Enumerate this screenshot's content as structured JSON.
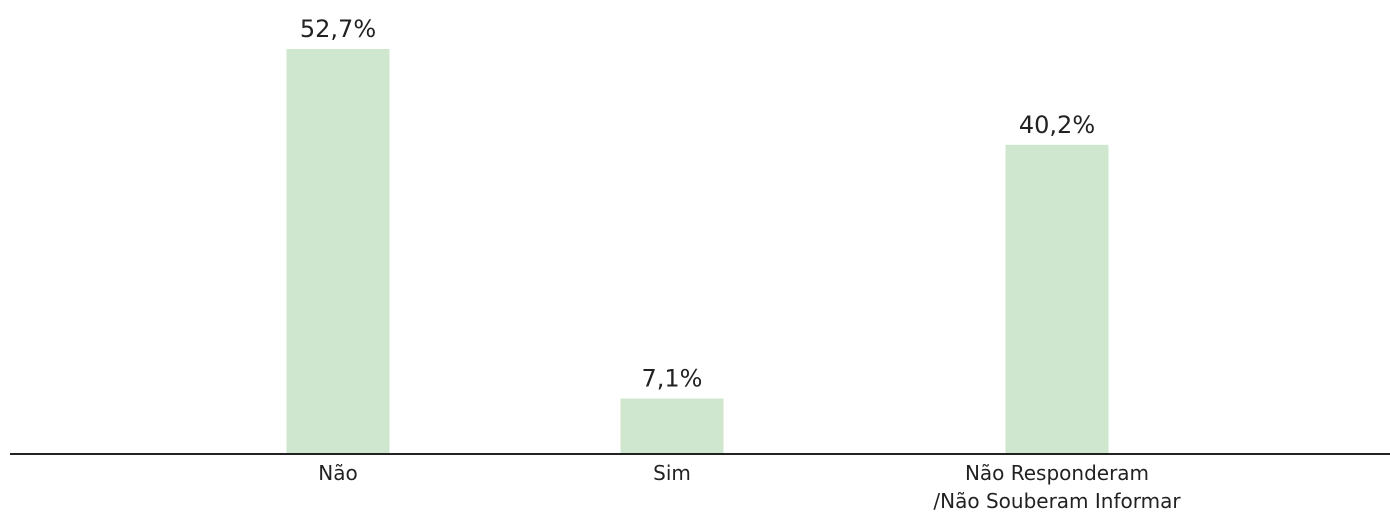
{
  "chart_data": {
    "type": "bar",
    "categories": [
      "Não",
      "Sim",
      "Não Responderam\n/Não Souberam Informar"
    ],
    "values": [
      52.7,
      7.1,
      40.2
    ],
    "value_labels": [
      "52,7%",
      "7,1%",
      "40,2%"
    ],
    "color": "#cfe7cf"
  }
}
